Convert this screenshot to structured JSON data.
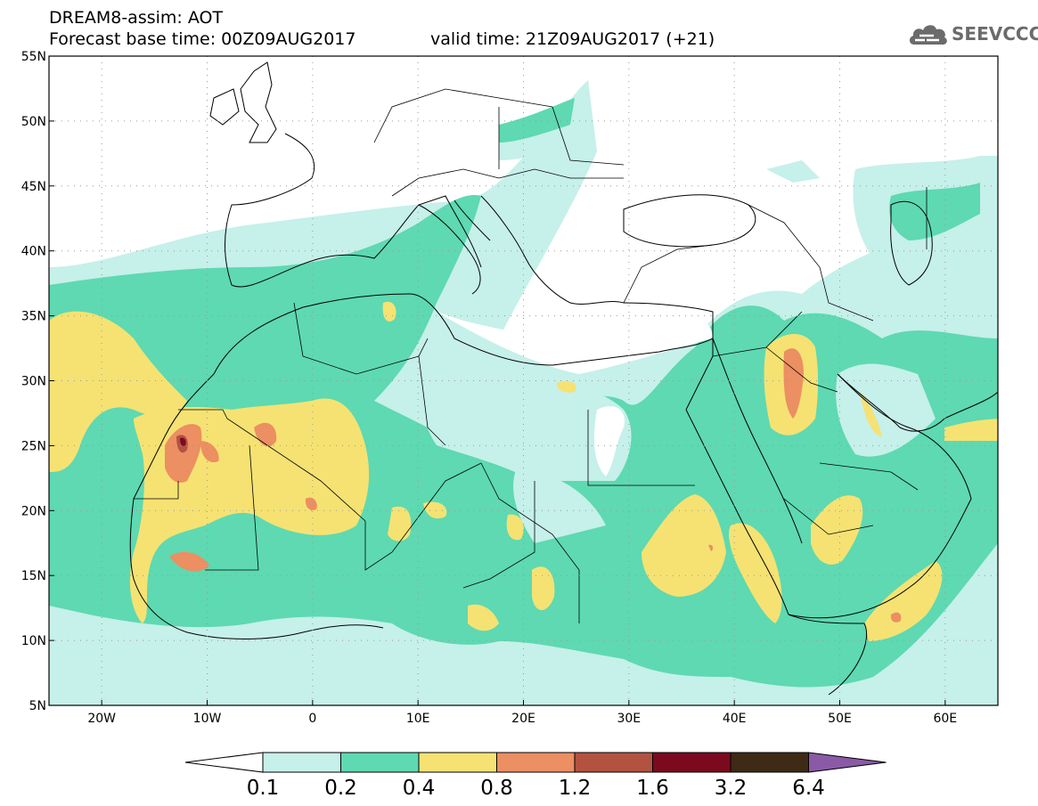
{
  "title": {
    "line1": "DREAM8-assim: AOT",
    "line2": "Forecast base time: 00Z09AUG2017",
    "line2b": "valid time: 21Z09AUG2017 (+21)"
  },
  "logo": {
    "text": "SEEVCCC",
    "icon": "cloud-icon"
  },
  "axes": {
    "lon_labels": [
      "20W",
      "10W",
      "0",
      "10E",
      "20E",
      "30E",
      "40E",
      "50E",
      "60E"
    ],
    "lat_labels": [
      "55N",
      "50N",
      "45N",
      "40N",
      "35N",
      "30N",
      "25N",
      "20N",
      "15N",
      "10N",
      "5N"
    ],
    "lon_range": [
      -25,
      65
    ],
    "lat_range": [
      5,
      55
    ]
  },
  "colorbar": {
    "labels": [
      "0.1",
      "0.2",
      "0.4",
      "0.8",
      "1.2",
      "1.6",
      "3.2",
      "6.4"
    ],
    "colors": [
      "#ffffff",
      "#c6f0ea",
      "#5ed9b1",
      "#f5e273",
      "#ec8f62",
      "#b35240",
      "#7b0a1f",
      "#3f2a16",
      "#8a5aa6"
    ]
  },
  "field_colors": {
    "c1": "#c6f0ea",
    "c2": "#5ed9b1",
    "c3": "#f5e273",
    "c4": "#ec8f62",
    "c5": "#b35240",
    "c6": "#7b0a1f"
  }
}
